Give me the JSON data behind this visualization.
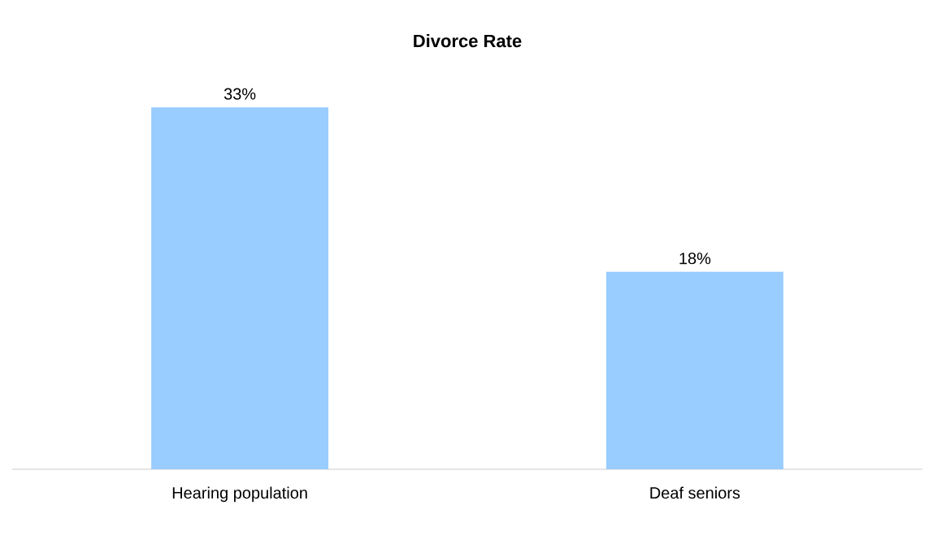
{
  "chart_data": {
    "type": "bar",
    "title": "Divorce Rate",
    "categories": [
      "Hearing population",
      "Deaf seniors"
    ],
    "values": [
      33,
      18
    ],
    "value_labels": [
      "33%",
      "18%"
    ],
    "color": "#99ccff"
  }
}
